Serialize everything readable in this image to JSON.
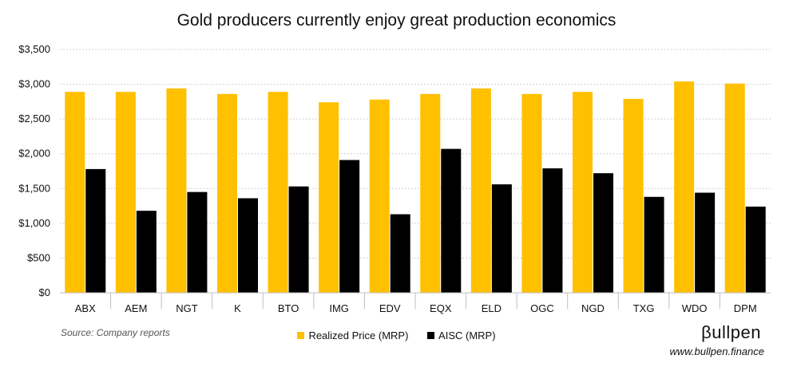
{
  "chart_data": {
    "type": "bar",
    "title": "Gold producers currently enjoy great production economics",
    "categories": [
      "ABX",
      "AEM",
      "NGT",
      "K",
      "BTO",
      "IMG",
      "EDV",
      "EQX",
      "ELD",
      "OGC",
      "NGD",
      "TXG",
      "WDO",
      "DPM"
    ],
    "series": [
      {
        "name": "Realized Price (MRP)",
        "color": "#FFC000",
        "values": [
          2890,
          2890,
          2940,
          2860,
          2890,
          2740,
          2780,
          2860,
          2940,
          2860,
          2890,
          2790,
          3040,
          3010
        ]
      },
      {
        "name": "AISC (MRP)",
        "color": "#000000",
        "values": [
          1780,
          1180,
          1450,
          1360,
          1530,
          1910,
          1130,
          2070,
          1560,
          1790,
          1720,
          1380,
          1440,
          1240
        ]
      }
    ],
    "ylim": [
      0,
      3500
    ],
    "yticks": [
      "$0",
      "$500",
      "$1,000",
      "$1,500",
      "$2,000",
      "$2,500",
      "$3,000",
      "$3,500"
    ],
    "grid": true,
    "legend_position": "bottom"
  },
  "footer": {
    "source": "Source: Company reports",
    "brand": "βullpen",
    "url": "www.bullpen.finance"
  }
}
